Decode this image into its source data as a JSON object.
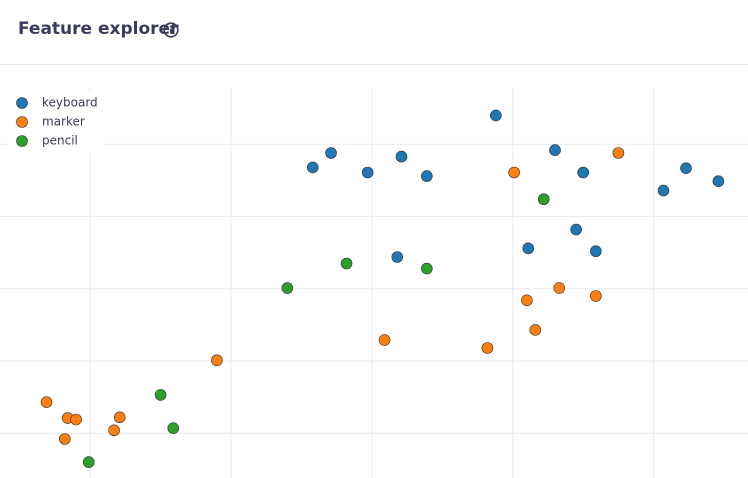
{
  "header": {
    "title": "Feature explorer"
  },
  "chart_data": {
    "type": "scatter",
    "grid": true,
    "tick_labels": false,
    "legend": "top-left",
    "xlim": [
      -0.64,
      4.67
    ],
    "ylim": [
      -0.62,
      4.78
    ],
    "xticks": [
      0,
      1,
      2,
      3,
      4
    ],
    "yticks": [
      0,
      1,
      2,
      3,
      4
    ],
    "series": [
      {
        "name": "keyboard",
        "color": "#1f77b4",
        "x": [
          2.88,
          1.71,
          1.58,
          1.97,
          2.21,
          2.39,
          3.3,
          3.5,
          4.07,
          4.23,
          4.46,
          3.11,
          3.45,
          3.59,
          2.18
        ],
        "values": [
          4.4,
          3.88,
          3.68,
          3.61,
          3.83,
          3.56,
          3.92,
          3.61,
          3.36,
          3.67,
          3.49,
          2.56,
          2.82,
          2.52,
          2.44
        ]
      },
      {
        "name": "marker",
        "color": "#ff7f0e",
        "x": [
          3.75,
          3.01,
          3.1,
          3.33,
          3.59,
          3.16,
          2.09,
          2.82,
          0.9,
          -0.31,
          -0.16,
          -0.1,
          -0.18,
          0.21,
          0.17
        ],
        "values": [
          3.88,
          3.61,
          1.84,
          2.01,
          1.9,
          1.43,
          1.29,
          1.18,
          1.01,
          0.43,
          0.21,
          0.19,
          -0.08,
          0.22,
          0.04
        ]
      },
      {
        "name": "pencil",
        "color": "#2ca02c",
        "x": [
          3.22,
          1.82,
          2.39,
          1.4,
          0.5,
          0.59,
          -0.01
        ],
        "values": [
          3.24,
          2.35,
          2.28,
          2.01,
          0.53,
          0.07,
          -0.4
        ]
      }
    ]
  }
}
